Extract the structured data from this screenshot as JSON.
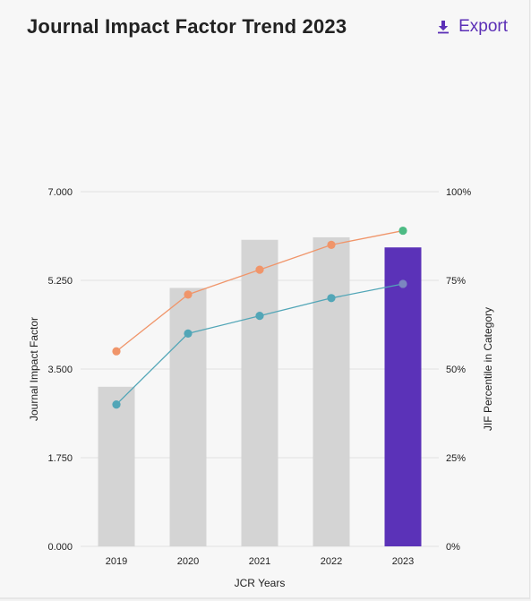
{
  "header": {
    "title": "Journal Impact Factor Trend 2023",
    "export_label": "Export"
  },
  "chart_data": {
    "type": "bar",
    "categories": [
      "2019",
      "2020",
      "2021",
      "2022",
      "2023"
    ],
    "xlabel": "JCR Years",
    "ylabel": "Journal Impact Factor",
    "y2label": "JIF Percentile in Category",
    "ylim": [
      0,
      7
    ],
    "y2lim": [
      0,
      100
    ],
    "yticks": [
      "0.000",
      "1.750",
      "3.500",
      "5.250",
      "7.000"
    ],
    "y2ticks": [
      "0%",
      "25%",
      "50%",
      "75%",
      "100%"
    ],
    "grid": true,
    "series": [
      {
        "kind": "bar",
        "axis": "left",
        "values": [
          3.15,
          5.1,
          6.05,
          6.1,
          5.9
        ],
        "colors": [
          "#d4d4d4",
          "#d4d4d4",
          "#d4d4d4",
          "#d4d4d4",
          "#5b32b8"
        ]
      },
      {
        "kind": "line",
        "axis": "right",
        "values": [
          55,
          71,
          78,
          85,
          89
        ],
        "color": "#f0956a",
        "last_point_color": "#4dbb84"
      },
      {
        "kind": "line",
        "axis": "right",
        "values": [
          40,
          60,
          65,
          70,
          74
        ],
        "color": "#52a6b7",
        "last_point_color": "#7b86c0"
      }
    ]
  }
}
